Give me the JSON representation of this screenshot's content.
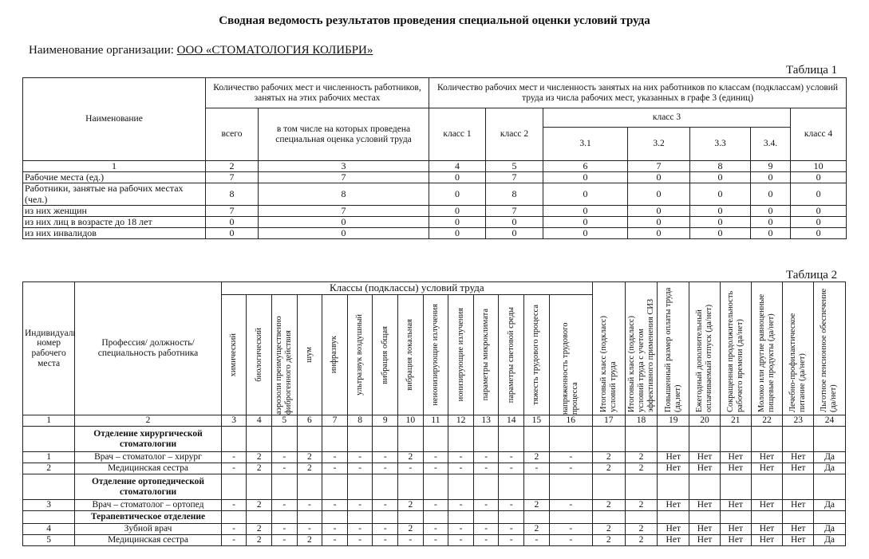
{
  "title": "Сводная ведомость результатов проведения специальной оценки условий труда",
  "organization": {
    "label": "Наименование организации:",
    "value": "ООО «СТОМАТОЛОГИЯ КОЛИБРИ»"
  },
  "table1": {
    "caption": "Таблица 1",
    "headers": {
      "name": "Наименование",
      "group_count": "Количество рабочих мест и численность работников, занятых на этих рабочих местах",
      "group_classes": "Количество рабочих мест и численность занятых на них работников по классам (подклассам) условий труда из числа рабочих мест, указанных в графе 3 (единиц)",
      "total": "всего",
      "assessed": "в том числе на которых проведена специальная оценка условий труда",
      "class1": "класс 1",
      "class2": "класс 2",
      "class3": "класс 3",
      "c31": "3.1",
      "c32": "3.2",
      "c33": "3.3",
      "c34": "3.4.",
      "class4": "класс 4"
    },
    "numbers": [
      "1",
      "2",
      "3",
      "4",
      "5",
      "6",
      "7",
      "8",
      "9",
      "10"
    ],
    "rows": [
      [
        "Рабочие места (ед.)",
        "7",
        "7",
        "0",
        "7",
        "0",
        "0",
        "0",
        "0",
        "0"
      ],
      [
        "Работники, занятые на рабочих местах (чел.)",
        "8",
        "8",
        "0",
        "8",
        "0",
        "0",
        "0",
        "0",
        "0"
      ],
      [
        "из них женщин",
        "7",
        "7",
        "0",
        "7",
        "0",
        "0",
        "0",
        "0",
        "0"
      ],
      [
        "из них лиц в возрасте до 18 лет",
        "0",
        "0",
        "0",
        "0",
        "0",
        "0",
        "0",
        "0",
        "0"
      ],
      [
        "из них инвалидов",
        "0",
        "0",
        "0",
        "0",
        "0",
        "0",
        "0",
        "0",
        "0"
      ]
    ]
  },
  "table2": {
    "caption": "Таблица 2",
    "headers": {
      "id": "Индивидуальный номер рабочего места",
      "profession": "Профессия/ должность/ специальность работника",
      "classes": "Классы (подклассы) условий труда",
      "factors": [
        "химический",
        "биологический",
        "аэрозоли преимущественно фиброгенного действия",
        "шум",
        "инфразвук",
        "ультразвук воздушный",
        "вибрация общая",
        "вибрация локальная",
        "неионизирующие излучения",
        "ионизирующие излучения",
        "параметры микроклимата",
        "параметры световой среды",
        "тяжесть трудового процесса",
        "напряженность трудового процесса"
      ],
      "extra": [
        "Итоговый класс (подкласс) условий труда",
        "Итоговый класс (подкласс) условий труда с учетом эффективного применения СИЗ",
        "Повышенный размер оплаты труда (да,нет)",
        "Ежегодный дополнительный оплачиваемый отпуск (да/нет)",
        "Сокращенная продолжительность рабочего времени (да/нет)",
        "Молоко или другие равноценные пищевые продукты (да/нет)",
        "Лечебно-профилактическое питание (да/нет)",
        "Льготное пенсионное обеспечение (да/нет)"
      ]
    },
    "numbers": [
      "1",
      "2",
      "3",
      "4",
      "5",
      "6",
      "7",
      "8",
      "9",
      "10",
      "11",
      "12",
      "13",
      "14",
      "15",
      "16",
      "17",
      "18",
      "19",
      "20",
      "21",
      "22",
      "23",
      "24"
    ],
    "rows": [
      {
        "section": "Отделение хирургической стоматологии"
      },
      {
        "cells": [
          "1",
          "Врач – стоматолог – хирург",
          "-",
          "2",
          "-",
          "2",
          "-",
          "-",
          "-",
          "2",
          "-",
          "-",
          "-",
          "-",
          "2",
          "-",
          "2",
          "2",
          "Нет",
          "Нет",
          "Нет",
          "Нет",
          "Нет",
          "Да"
        ]
      },
      {
        "cells": [
          "2",
          "Медицинская сестра",
          "-",
          "2",
          "-",
          "2",
          "-",
          "-",
          "-",
          "-",
          "-",
          "-",
          "-",
          "-",
          "-",
          "-",
          "2",
          "2",
          "Нет",
          "Нет",
          "Нет",
          "Нет",
          "Нет",
          "Да"
        ]
      },
      {
        "section": "Отделение ортопедической стоматологии"
      },
      {
        "cells": [
          "3",
          "Врач – стоматолог – ортопед",
          "-",
          "2",
          "-",
          "-",
          "-",
          "-",
          "-",
          "2",
          "-",
          "-",
          "-",
          "-",
          "2",
          "-",
          "2",
          "2",
          "Нет",
          "Нет",
          "Нет",
          "Нет",
          "Нет",
          "Да"
        ]
      },
      {
        "section": "Терапевтическое отделение"
      },
      {
        "cells": [
          "4",
          "Зубной врач",
          "-",
          "2",
          "-",
          "-",
          "-",
          "-",
          "-",
          "2",
          "-",
          "-",
          "-",
          "-",
          "2",
          "-",
          "2",
          "2",
          "Нет",
          "Нет",
          "Нет",
          "Нет",
          "Нет",
          "Да"
        ]
      },
      {
        "cells": [
          "5",
          "Медицинская сестра",
          "-",
          "2",
          "-",
          "2",
          "-",
          "-",
          "-",
          "-",
          "-",
          "-",
          "-",
          "-",
          "-",
          "-",
          "2",
          "2",
          "Нет",
          "Нет",
          "Нет",
          "Нет",
          "Нет",
          "Да"
        ]
      }
    ]
  }
}
